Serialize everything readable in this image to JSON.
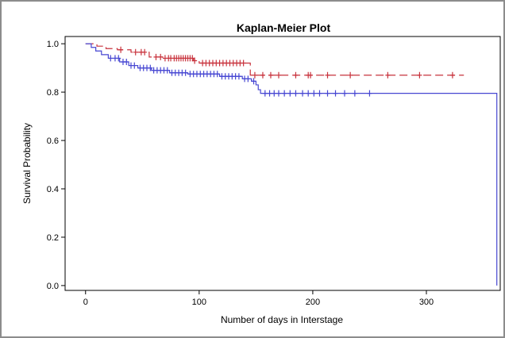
{
  "chart_data": {
    "type": "line",
    "title": "Kaplan-Meier Plot",
    "xlabel": "Number of days in Interstage",
    "ylabel": "Survival Probability",
    "xlim": [
      -18,
      365
    ],
    "ylim": [
      -0.02,
      1.03
    ],
    "xticks": [
      0,
      100,
      200,
      300
    ],
    "yticks": [
      0.0,
      0.2,
      0.4,
      0.6,
      0.8,
      1.0
    ],
    "grid": false,
    "series": [
      {
        "color": "#c8323c",
        "dash": true,
        "steps": [
          [
            0,
            1.0
          ],
          [
            10,
            0.99
          ],
          [
            18,
            0.98
          ],
          [
            28,
            0.975
          ],
          [
            40,
            0.965
          ],
          [
            56,
            0.945
          ],
          [
            68,
            0.94
          ],
          [
            95,
            0.93
          ],
          [
            100,
            0.92
          ],
          [
            145,
            0.87
          ],
          [
            333,
            0.87
          ]
        ],
        "censored": [
          31,
          44,
          49,
          52,
          62,
          66,
          70,
          73,
          75,
          78,
          80,
          82,
          84,
          86,
          88,
          90,
          92,
          94,
          96,
          103,
          106,
          109,
          112,
          115,
          118,
          121,
          124,
          127,
          130,
          133,
          136,
          139,
          149,
          156,
          163,
          170,
          185,
          196,
          198,
          213,
          233,
          266,
          294,
          323
        ]
      },
      {
        "color": "#4646d2",
        "dash": false,
        "steps": [
          [
            0,
            1.0
          ],
          [
            5,
            0.985
          ],
          [
            9,
            0.97
          ],
          [
            14,
            0.955
          ],
          [
            20,
            0.94
          ],
          [
            30,
            0.925
          ],
          [
            38,
            0.91
          ],
          [
            46,
            0.9
          ],
          [
            58,
            0.89
          ],
          [
            74,
            0.88
          ],
          [
            90,
            0.875
          ],
          [
            118,
            0.865
          ],
          [
            138,
            0.855
          ],
          [
            146,
            0.845
          ],
          [
            150,
            0.83
          ],
          [
            152,
            0.81
          ],
          [
            154,
            0.795
          ],
          [
            362,
            0.795
          ],
          [
            362,
            0.0
          ]
        ],
        "censored": [
          22,
          26,
          29,
          33,
          36,
          40,
          43,
          48,
          51,
          54,
          57,
          60,
          63,
          66,
          69,
          72,
          76,
          79,
          82,
          85,
          88,
          92,
          95,
          98,
          101,
          104,
          107,
          110,
          113,
          116,
          120,
          123,
          126,
          129,
          132,
          135,
          140,
          143,
          148,
          158,
          162,
          166,
          170,
          175,
          180,
          185,
          191,
          196,
          201,
          206,
          213,
          220,
          228,
          237,
          250
        ]
      }
    ]
  }
}
